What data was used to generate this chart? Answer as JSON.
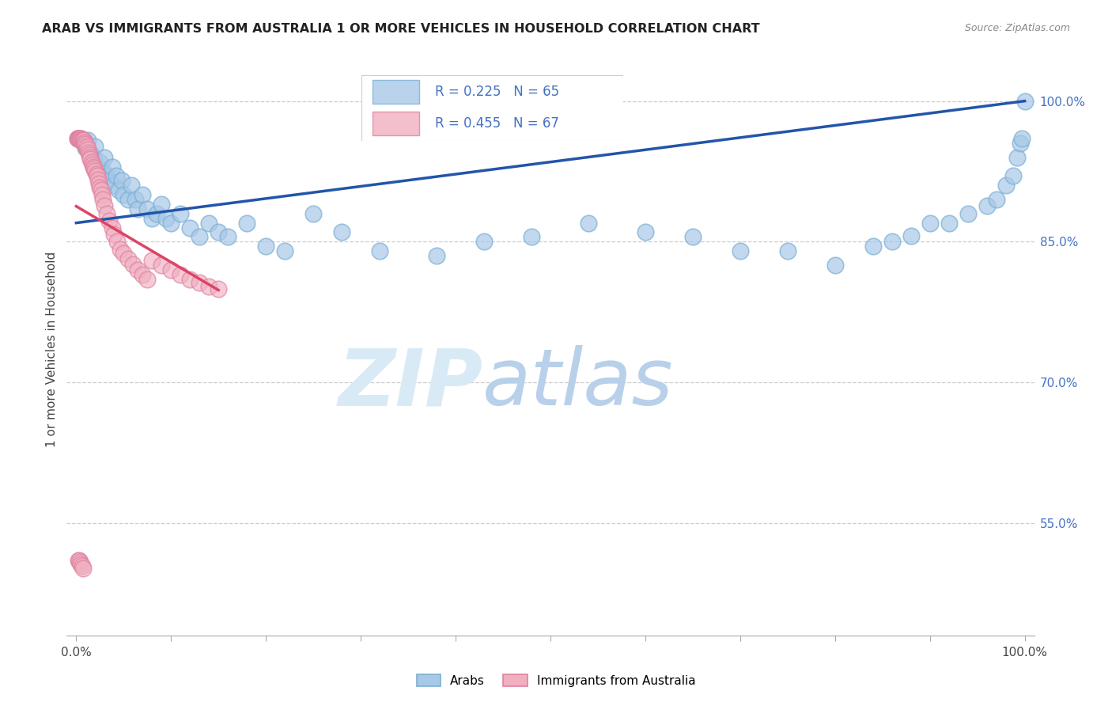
{
  "title": "ARAB VS IMMIGRANTS FROM AUSTRALIA 1 OR MORE VEHICLES IN HOUSEHOLD CORRELATION CHART",
  "source": "Source: ZipAtlas.com",
  "ylabel": "1 or more Vehicles in Household",
  "R_blue": 0.225,
  "N_blue": 65,
  "R_pink": 0.455,
  "N_pink": 67,
  "blue_color": "#a8c8e8",
  "blue_edge": "#7bafd4",
  "pink_color": "#f0b0c0",
  "pink_edge": "#e080a0",
  "trendline_blue_color": "#2255aa",
  "trendline_pink_color": "#dd4466",
  "legend1_label": "Arabs",
  "legend2_label": "Immigrants from Australia",
  "ytick_color": "#4472c4",
  "title_color": "#222222",
  "bg_color": "#ffffff",
  "grid_color": "#cccccc",
  "ylim_min": 0.43,
  "ylim_max": 1.04,
  "xlim_min": -0.01,
  "xlim_max": 1.01,
  "ytick_vals": [
    1.0,
    0.85,
    0.7,
    0.55
  ],
  "ytick_labels": [
    "100.0%",
    "85.0%",
    "70.0%",
    "55.0%"
  ],
  "blue_x": [
    0.005,
    0.008,
    0.01,
    0.012,
    0.015,
    0.018,
    0.02,
    0.022,
    0.025,
    0.028,
    0.03,
    0.032,
    0.035,
    0.038,
    0.04,
    0.042,
    0.045,
    0.048,
    0.05,
    0.055,
    0.058,
    0.062,
    0.065,
    0.07,
    0.075,
    0.08,
    0.085,
    0.09,
    0.095,
    0.1,
    0.11,
    0.12,
    0.13,
    0.14,
    0.15,
    0.16,
    0.18,
    0.2,
    0.22,
    0.25,
    0.28,
    0.32,
    0.38,
    0.43,
    0.48,
    0.54,
    0.6,
    0.65,
    0.7,
    0.75,
    0.8,
    0.84,
    0.86,
    0.88,
    0.9,
    0.92,
    0.94,
    0.96,
    0.97,
    0.98,
    0.988,
    0.992,
    0.995,
    0.997,
    1.0
  ],
  "blue_y": [
    0.96,
    0.955,
    0.95,
    0.958,
    0.945,
    0.94,
    0.952,
    0.93,
    0.935,
    0.925,
    0.94,
    0.92,
    0.915,
    0.93,
    0.91,
    0.92,
    0.905,
    0.915,
    0.9,
    0.895,
    0.91,
    0.895,
    0.885,
    0.9,
    0.885,
    0.875,
    0.88,
    0.89,
    0.875,
    0.87,
    0.88,
    0.865,
    0.855,
    0.87,
    0.86,
    0.855,
    0.87,
    0.845,
    0.84,
    0.88,
    0.86,
    0.84,
    0.835,
    0.85,
    0.855,
    0.87,
    0.86,
    0.855,
    0.84,
    0.84,
    0.825,
    0.845,
    0.85,
    0.856,
    0.87,
    0.87,
    0.88,
    0.888,
    0.895,
    0.91,
    0.92,
    0.94,
    0.955,
    0.96,
    1.0
  ],
  "pink_x": [
    0.001,
    0.001,
    0.002,
    0.002,
    0.003,
    0.003,
    0.004,
    0.004,
    0.005,
    0.005,
    0.006,
    0.006,
    0.007,
    0.007,
    0.008,
    0.008,
    0.009,
    0.009,
    0.01,
    0.01,
    0.011,
    0.011,
    0.012,
    0.013,
    0.014,
    0.015,
    0.015,
    0.016,
    0.017,
    0.018,
    0.019,
    0.02,
    0.021,
    0.022,
    0.023,
    0.024,
    0.025,
    0.026,
    0.027,
    0.028,
    0.03,
    0.032,
    0.035,
    0.038,
    0.04,
    0.043,
    0.046,
    0.05,
    0.055,
    0.06,
    0.065,
    0.07,
    0.075,
    0.08,
    0.09,
    0.1,
    0.11,
    0.12,
    0.13,
    0.14,
    0.15,
    0.002,
    0.003,
    0.004,
    0.005,
    0.006,
    0.007
  ],
  "pink_y": [
    0.96,
    0.96,
    0.96,
    0.96,
    0.96,
    0.96,
    0.96,
    0.96,
    0.96,
    0.958,
    0.958,
    0.958,
    0.956,
    0.958,
    0.955,
    0.958,
    0.954,
    0.956,
    0.952,
    0.954,
    0.95,
    0.952,
    0.948,
    0.945,
    0.942,
    0.94,
    0.938,
    0.935,
    0.932,
    0.93,
    0.928,
    0.925,
    0.922,
    0.92,
    0.916,
    0.912,
    0.908,
    0.905,
    0.9,
    0.895,
    0.888,
    0.88,
    0.872,
    0.865,
    0.858,
    0.85,
    0.842,
    0.838,
    0.832,
    0.826,
    0.82,
    0.815,
    0.81,
    0.83,
    0.825,
    0.82,
    0.815,
    0.81,
    0.806,
    0.802,
    0.8,
    0.51,
    0.51,
    0.508,
    0.506,
    0.504,
    0.502
  ]
}
